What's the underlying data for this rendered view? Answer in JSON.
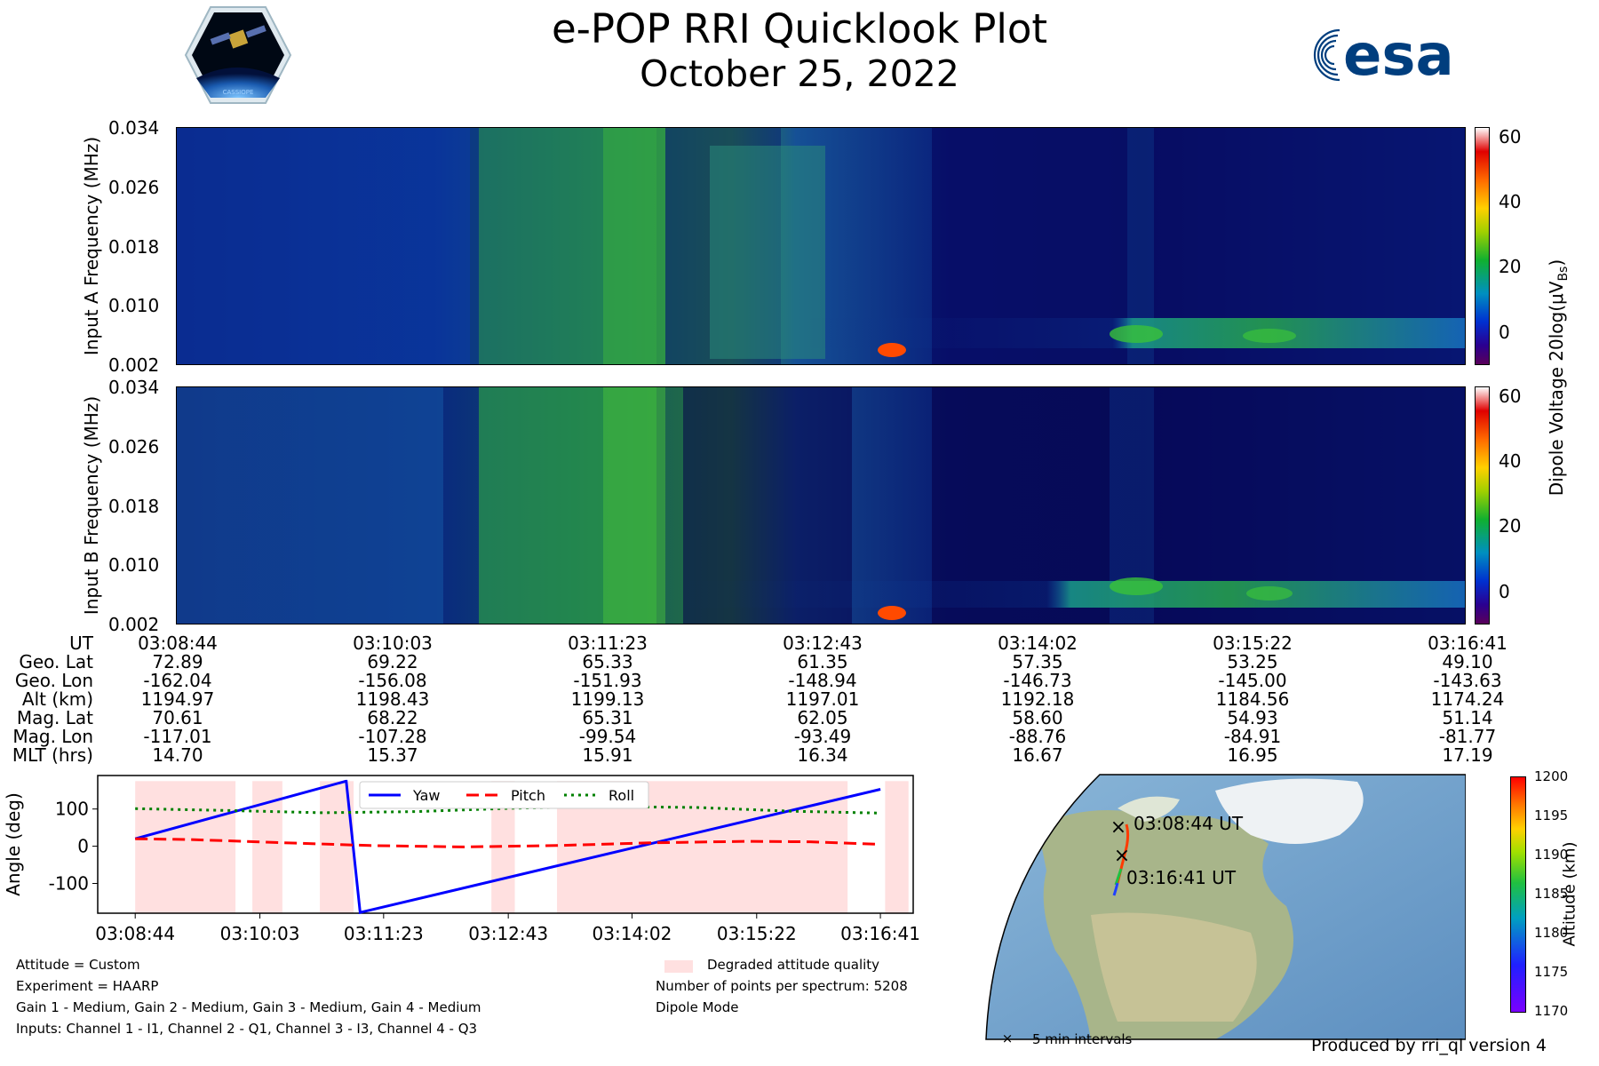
{
  "header": {
    "title": "e-POP RRI Quicklook Plot",
    "date": "October 25, 2022",
    "esa_logo_text": "esa",
    "cassiope_badge_text": "CASSIOPE"
  },
  "colors": {
    "yaw": "#0000ff",
    "pitch": "#ff0000",
    "roll": "#008000",
    "degraded": "#ffe0e0"
  },
  "spectrogram": {
    "panel_a_ylabel": "Input A Frequency (MHz)",
    "panel_b_ylabel": "Input B Frequency (MHz)",
    "y_ticks": [
      "0.034",
      "0.026",
      "0.018",
      "0.010",
      "0.002"
    ],
    "colorbar_ticks": [
      "60",
      "40",
      "20",
      "0"
    ],
    "colorbar_label": "Dipole Voltage 20log(μV",
    "colorbar_label_sub": "Bs",
    "colorbar_label_end": ")"
  },
  "orbit_table": {
    "row_labels": [
      "UT",
      "Geo. Lat",
      "Geo. Lon",
      "Alt (km)",
      "Mag. Lat",
      "Mag. Lon",
      "MLT (hrs)"
    ],
    "columns": [
      [
        "03:08:44",
        "72.89",
        "-162.04",
        "1194.97",
        "70.61",
        "-117.01",
        "14.70"
      ],
      [
        "03:10:03",
        "69.22",
        "-156.08",
        "1198.43",
        "68.22",
        "-107.28",
        "15.37"
      ],
      [
        "03:11:23",
        "65.33",
        "-151.93",
        "1199.13",
        "65.31",
        "-99.54",
        "15.91"
      ],
      [
        "03:12:43",
        "61.35",
        "-148.94",
        "1197.01",
        "62.05",
        "-93.49",
        "16.34"
      ],
      [
        "03:14:02",
        "57.35",
        "-146.73",
        "1192.18",
        "58.60",
        "-88.76",
        "16.67"
      ],
      [
        "03:15:22",
        "53.25",
        "-145.00",
        "1184.56",
        "54.93",
        "-84.91",
        "16.95"
      ],
      [
        "03:16:41",
        "49.10",
        "-143.63",
        "1174.24",
        "51.14",
        "-81.77",
        "17.19"
      ]
    ]
  },
  "attitude_info": {
    "lines": [
      "Attitude = Custom",
      "Experiment = HAARP",
      "Gain 1 - Medium, Gain 2 - Medium, Gain 3 - Medium, Gain 4 - Medium",
      "Inputs: Channel 1 - I1, Channel 2 - Q1, Channel 3 - I3, Channel 4 - Q3"
    ],
    "degraded_legend": "Degraded attitude quality",
    "points_per_spectrum": "Number of points per spectrum: 5208",
    "mode": "Dipole Mode"
  },
  "map": {
    "start_label": "03:08:44 UT",
    "end_label": "03:16:41 UT",
    "interval_legend": "5 min intervals",
    "marker_glyph": "×",
    "colorbar_label": "Altitude (km)",
    "colorbar_ticks": [
      "1200",
      "1195",
      "1190",
      "1185",
      "1180",
      "1175",
      "1170"
    ]
  },
  "footer": {
    "produced_by": "Produced by rri_ql version 4"
  },
  "chart_data": [
    {
      "type": "line",
      "title": "",
      "xlabel": "",
      "ylabel": "Angle (deg)",
      "x_tick_labels": [
        "03:08:44",
        "03:10:03",
        "03:11:23",
        "03:12:43",
        "03:14:02",
        "03:15:22",
        "03:16:41"
      ],
      "x_minutes": [
        0,
        1.33,
        2.65,
        3.98,
        5.3,
        6.63,
        7.95
      ],
      "y_ticks": [
        100,
        0,
        -100
      ],
      "ylim": [
        -180,
        190
      ],
      "xlim": [
        -0.4,
        8.3
      ],
      "legend": "top-center",
      "series": [
        {
          "name": "Yaw",
          "style": "solid",
          "x": [
            0,
            2.25,
            2.25,
            2.4,
            7.95
          ],
          "y": [
            20,
            175,
            178,
            -178,
            153
          ]
        },
        {
          "name": "Pitch",
          "style": "dashed",
          "x": [
            0,
            0.6,
            1.5,
            2.5,
            3.5,
            4.5,
            5.5,
            6.5,
            7.2,
            7.95
          ],
          "y": [
            20,
            18,
            10,
            2,
            -2,
            2,
            9,
            13,
            12,
            5
          ]
        },
        {
          "name": "Roll",
          "style": "dotted",
          "x": [
            0,
            1.0,
            2.0,
            3.0,
            4.0,
            5.0,
            6.0,
            7.0,
            7.95
          ],
          "y": [
            101,
            96,
            90,
            93,
            102,
            107,
            104,
            94,
            89
          ]
        }
      ],
      "degraded_intervals": [
        [
          0,
          1.07
        ],
        [
          1.25,
          1.57
        ],
        [
          1.97,
          2.33
        ],
        [
          3.8,
          4.05
        ],
        [
          4.5,
          7.6
        ],
        [
          8.0,
          8.25
        ]
      ]
    }
  ]
}
